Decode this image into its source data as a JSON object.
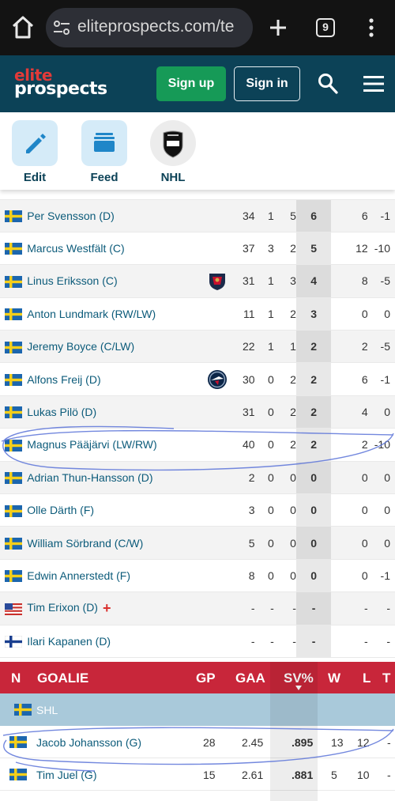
{
  "browser": {
    "url": "eliteprospects.com/te",
    "tab_count": "9"
  },
  "site": {
    "logo_line1": "elite",
    "logo_line2": "prospects",
    "signup_label": "Sign up",
    "signin_label": "Sign in"
  },
  "shortcuts": {
    "edit": "Edit",
    "feed": "Feed",
    "nhl": "NHL"
  },
  "colors": {
    "header_bg": "#0c4257",
    "accent_green": "#169a57",
    "goalie_header": "#c8263a",
    "league_row": "#a9c9da",
    "link": "#0c5b7a"
  },
  "skaters": [
    {
      "flag": "SWE",
      "name": "Per Svensson (D)",
      "team_logo": "",
      "gp": "34",
      "g": "1",
      "a": "5",
      "p": "6",
      "pim": "6",
      "pm": "-1"
    },
    {
      "flag": "SWE",
      "name": "Marcus Westfält (C)",
      "team_logo": "",
      "gp": "37",
      "g": "3",
      "a": "2",
      "p": "5",
      "pim": "12",
      "pm": "-10"
    },
    {
      "flag": "SWE",
      "name": "Linus Eriksson (C)",
      "team_logo": "florida-panthers",
      "gp": "31",
      "g": "1",
      "a": "3",
      "p": "4",
      "pim": "8",
      "pm": "-5"
    },
    {
      "flag": "SWE",
      "name": "Anton Lundmark (RW/LW)",
      "team_logo": "",
      "gp": "11",
      "g": "1",
      "a": "2",
      "p": "3",
      "pim": "0",
      "pm": "0"
    },
    {
      "flag": "SWE",
      "name": "Jeremy Boyce (C/LW)",
      "team_logo": "",
      "gp": "22",
      "g": "1",
      "a": "1",
      "p": "2",
      "pim": "2",
      "pm": "-5"
    },
    {
      "flag": "SWE",
      "name": "Alfons Freij (D)",
      "team_logo": "winnipeg-jets",
      "gp": "30",
      "g": "0",
      "a": "2",
      "p": "2",
      "pim": "6",
      "pm": "-1"
    },
    {
      "flag": "SWE",
      "name": "Lukas Pilö (D)",
      "team_logo": "",
      "gp": "31",
      "g": "0",
      "a": "2",
      "p": "2",
      "pim": "4",
      "pm": "0"
    },
    {
      "flag": "SWE",
      "name": "Magnus Pääjärvi (LW/RW)",
      "team_logo": "",
      "gp": "40",
      "g": "0",
      "a": "2",
      "p": "2",
      "pim": "2",
      "pm": "-10"
    },
    {
      "flag": "SWE",
      "name": "Adrian Thun-Hansson (D)",
      "team_logo": "",
      "gp": "2",
      "g": "0",
      "a": "0",
      "p": "0",
      "pim": "0",
      "pm": "0"
    },
    {
      "flag": "SWE",
      "name": "Olle Därth (F)",
      "team_logo": "",
      "gp": "3",
      "g": "0",
      "a": "0",
      "p": "0",
      "pim": "0",
      "pm": "0"
    },
    {
      "flag": "SWE",
      "name": "William Sörbrand (C/W)",
      "team_logo": "",
      "gp": "5",
      "g": "0",
      "a": "0",
      "p": "0",
      "pim": "0",
      "pm": "0"
    },
    {
      "flag": "SWE",
      "name": "Edwin Annerstedt (F)",
      "team_logo": "",
      "gp": "8",
      "g": "0",
      "a": "0",
      "p": "0",
      "pim": "0",
      "pm": "-1"
    },
    {
      "flag": "USA",
      "name": "Tim Erixon (D)",
      "team_logo": "",
      "injured": true,
      "gp": "-",
      "g": "-",
      "a": "-",
      "p": "-",
      "pim": "-",
      "pm": "-"
    },
    {
      "flag": "FIN",
      "name": "Ilari Kapanen (D)",
      "team_logo": "",
      "gp": "-",
      "g": "-",
      "a": "-",
      "p": "-",
      "pim": "-",
      "pm": "-"
    }
  ],
  "goalie": {
    "headers": {
      "n": "N",
      "name": "GOALIE",
      "gp": "GP",
      "gaa": "GAA",
      "sv": "SV%",
      "w": "W",
      "l": "L",
      "t": "T"
    },
    "league": "SHL",
    "rows": [
      {
        "flag": "SWE",
        "name": "Jacob Johansson (G)",
        "gp": "28",
        "gaa": "2.45",
        "sv": ".895",
        "w": "13",
        "l": "12",
        "t": "-"
      },
      {
        "flag": "SWE",
        "name": "Tim Juel (G)",
        "gp": "15",
        "gaa": "2.61",
        "sv": ".881",
        "w": "5",
        "l": "10",
        "t": "-"
      }
    ]
  }
}
